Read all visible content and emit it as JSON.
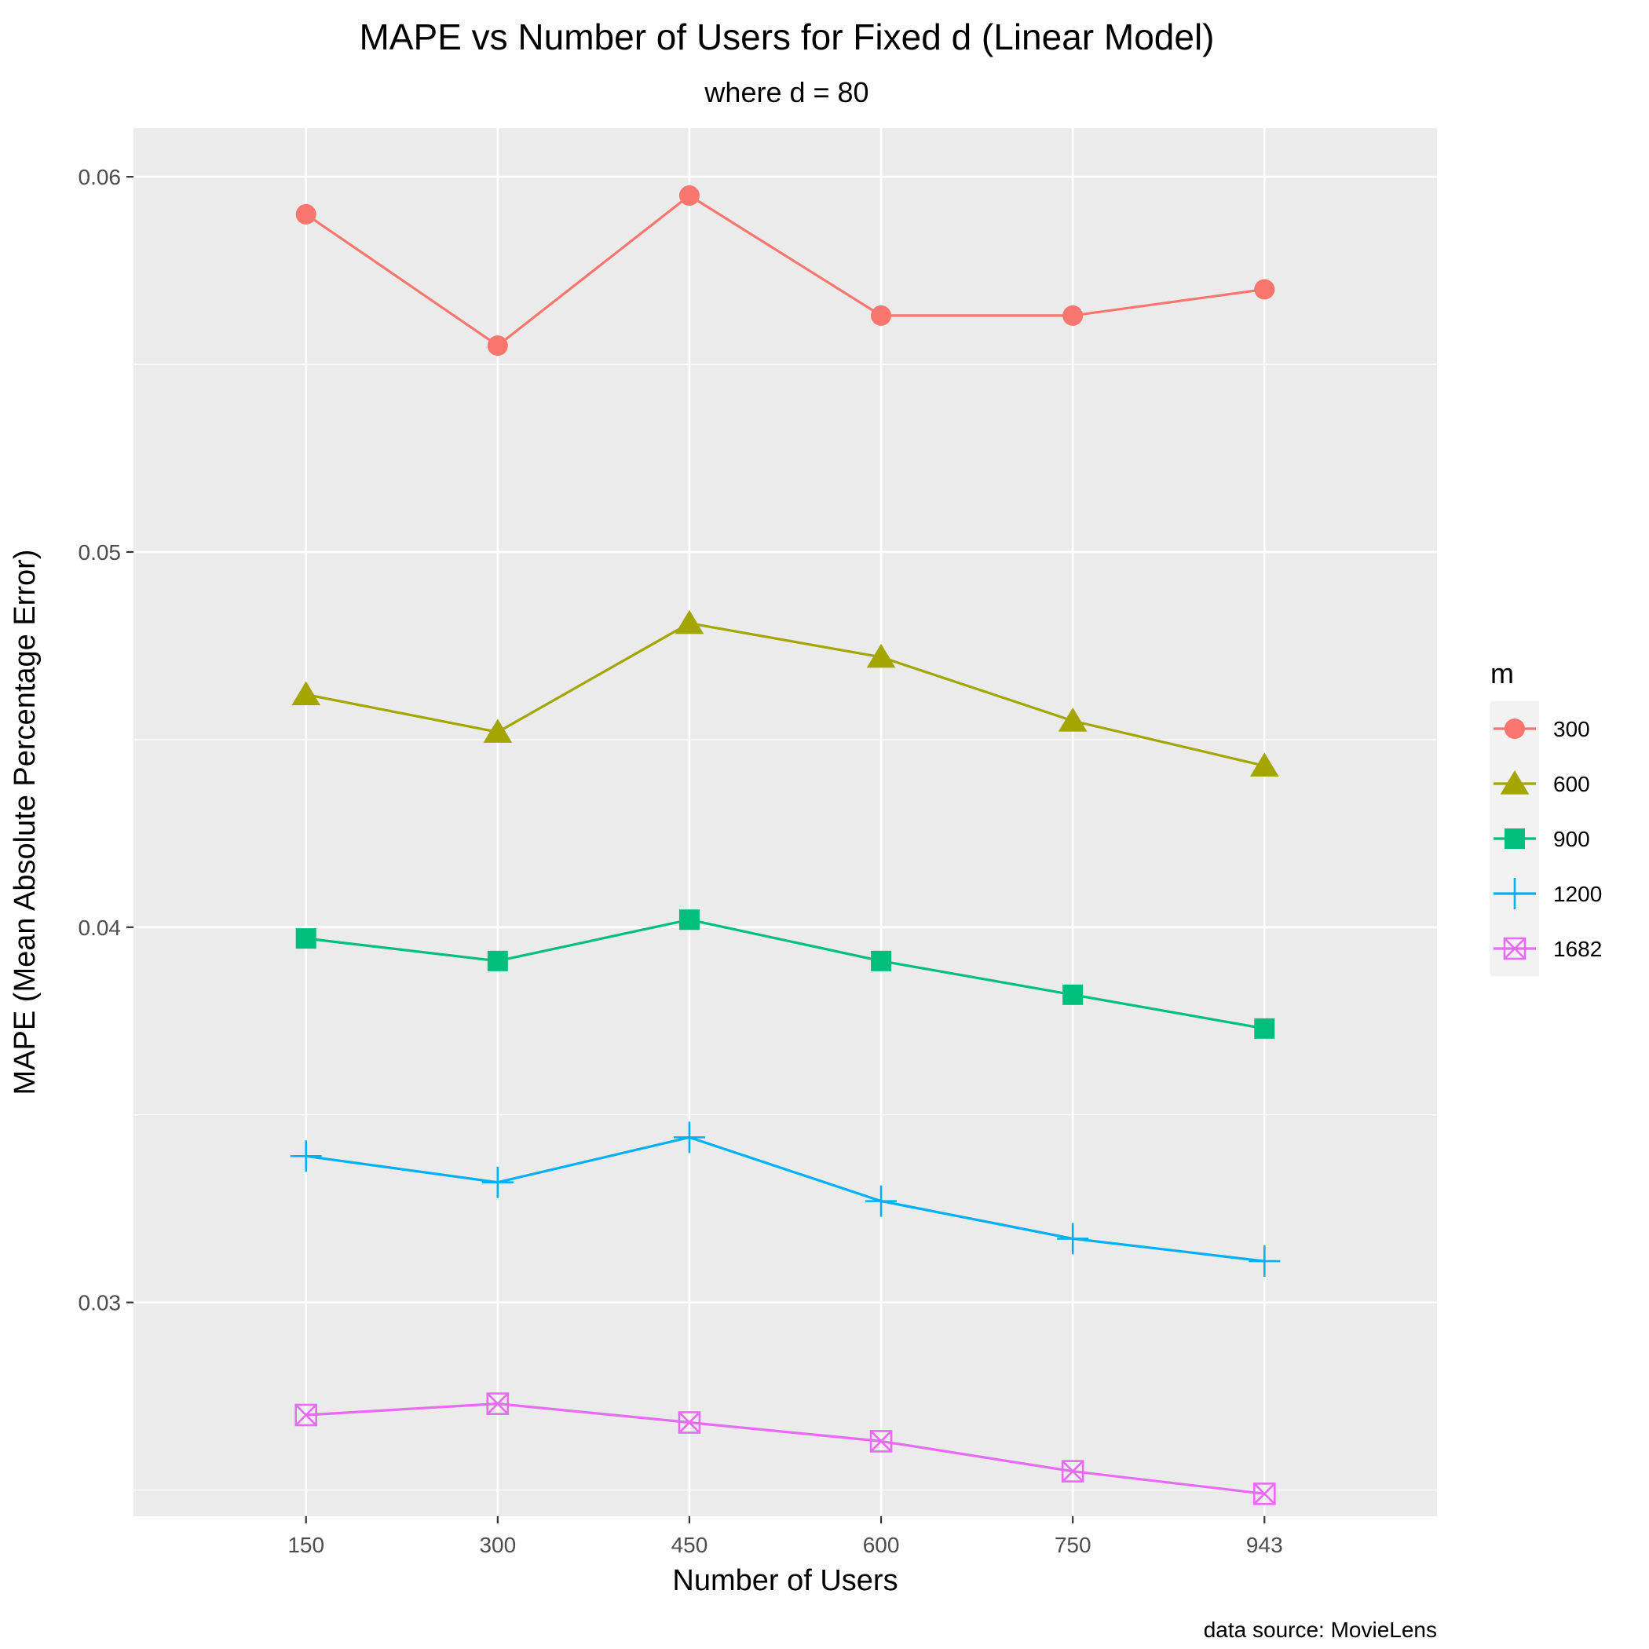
{
  "chart_data": {
    "type": "line",
    "title": "MAPE vs Number of Users for Fixed d (Linear Model)",
    "subtitle": "where d = 80",
    "xlabel": "Number of Users",
    "ylabel": "MAPE (Mean Absolute Percentage Error)",
    "caption": "data source: MovieLens",
    "categories": [
      "150",
      "300",
      "450",
      "600",
      "750",
      "943"
    ],
    "y_ticks": [
      0.03,
      0.04,
      0.05,
      0.06
    ],
    "y_tick_labels": [
      "0.03",
      "0.04",
      "0.05",
      "0.06"
    ],
    "ylim": [
      0.0243,
      0.0613
    ],
    "grid": true,
    "legend_title": "m",
    "legend_position": "right",
    "series": [
      {
        "name": "300",
        "color": "#F8766D",
        "shape": "circle",
        "values": [
          0.059,
          0.0555,
          0.0595,
          0.0563,
          0.0563,
          0.057
        ]
      },
      {
        "name": "600",
        "color": "#A3A500",
        "shape": "triangle",
        "values": [
          0.0462,
          0.0452,
          0.0481,
          0.0472,
          0.0455,
          0.0443
        ]
      },
      {
        "name": "900",
        "color": "#00BF7D",
        "shape": "square",
        "values": [
          0.0397,
          0.0391,
          0.0402,
          0.0391,
          0.0382,
          0.0373
        ]
      },
      {
        "name": "1200",
        "color": "#00B0F6",
        "shape": "plus",
        "values": [
          0.0339,
          0.0332,
          0.0344,
          0.0327,
          0.0317,
          0.0311
        ]
      },
      {
        "name": "1682",
        "color": "#E76BF3",
        "shape": "square-x",
        "values": [
          0.027,
          0.0273,
          0.0268,
          0.0263,
          0.0255,
          0.0249
        ]
      }
    ]
  }
}
